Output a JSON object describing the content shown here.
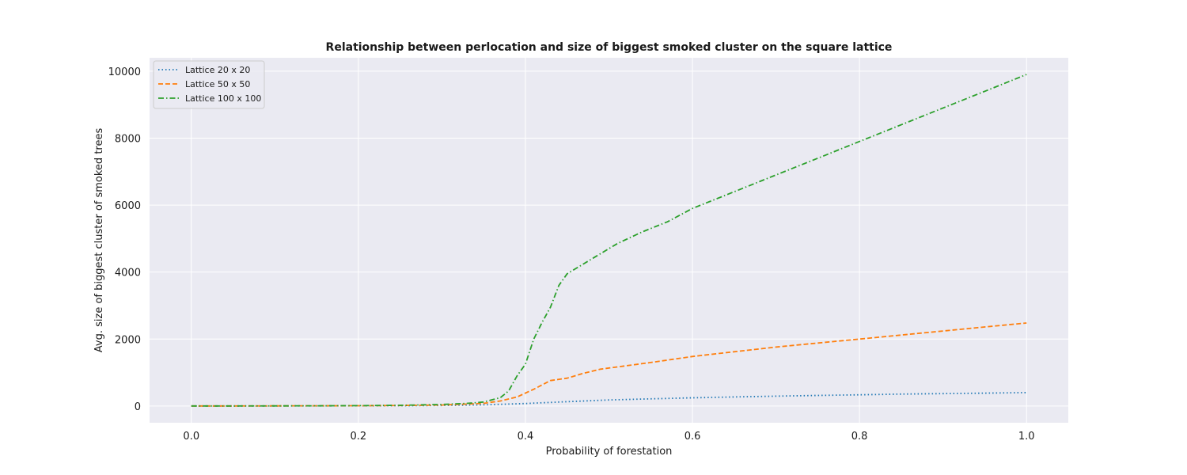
{
  "chart_data": {
    "type": "line",
    "title": "Relationship between perlocation and size of biggest smoked cluster on the square lattice",
    "xlabel": "Probability of forestation",
    "ylabel": "Avg. size of biggest cluster of smoked trees",
    "xlim": [
      -0.05,
      1.05
    ],
    "ylim": [
      -500,
      10400
    ],
    "xticks": [
      0.0,
      0.2,
      0.4,
      0.6,
      0.8,
      1.0
    ],
    "xtick_labels": [
      "0.0",
      "0.2",
      "0.4",
      "0.6",
      "0.8",
      "1.0"
    ],
    "yticks": [
      0,
      2000,
      4000,
      6000,
      8000,
      10000
    ],
    "ytick_labels": [
      "0",
      "2000",
      "4000",
      "6000",
      "8000",
      "10000"
    ],
    "grid": true,
    "legend_position": "top-left",
    "series": [
      {
        "name": "Lattice 20 x 20",
        "color": "#1f77b4",
        "style": "dotted",
        "x": [
          0.0,
          0.05,
          0.1,
          0.15,
          0.2,
          0.25,
          0.3,
          0.35,
          0.4,
          0.45,
          0.5,
          0.55,
          0.6,
          0.65,
          0.7,
          0.75,
          0.8,
          0.85,
          0.9,
          0.95,
          1.0
        ],
        "y": [
          1,
          1,
          2,
          3,
          5,
          8,
          15,
          35,
          75,
          130,
          180,
          215,
          245,
          270,
          295,
          315,
          335,
          355,
          370,
          385,
          400
        ]
      },
      {
        "name": "Lattice 50 x 50",
        "color": "#ff7f0e",
        "style": "dashed",
        "x": [
          0.0,
          0.05,
          0.1,
          0.15,
          0.2,
          0.25,
          0.3,
          0.35,
          0.37,
          0.39,
          0.41,
          0.43,
          0.45,
          0.47,
          0.49,
          0.52,
          0.55,
          0.6,
          0.65,
          0.7,
          0.75,
          0.8,
          0.85,
          0.9,
          0.95,
          1.0
        ],
        "y": [
          1,
          2,
          3,
          5,
          8,
          15,
          30,
          80,
          150,
          270,
          500,
          760,
          830,
          980,
          1100,
          1200,
          1300,
          1480,
          1620,
          1760,
          1880,
          2000,
          2120,
          2240,
          2360,
          2480
        ]
      },
      {
        "name": "Lattice 100 x 100",
        "color": "#2ca02c",
        "style": "dashdot",
        "x": [
          0.0,
          0.05,
          0.1,
          0.15,
          0.2,
          0.25,
          0.3,
          0.33,
          0.35,
          0.37,
          0.38,
          0.39,
          0.4,
          0.41,
          0.42,
          0.43,
          0.44,
          0.45,
          0.47,
          0.49,
          0.51,
          0.54,
          0.57,
          0.6,
          0.65,
          0.7,
          0.75,
          0.8,
          0.85,
          0.9,
          0.95,
          1.0
        ],
        "y": [
          1,
          2,
          3,
          5,
          10,
          20,
          45,
          80,
          120,
          250,
          450,
          900,
          1250,
          2000,
          2500,
          2950,
          3600,
          3950,
          4250,
          4550,
          4850,
          5200,
          5500,
          5900,
          6400,
          6900,
          7400,
          7900,
          8400,
          8900,
          9400,
          9900
        ]
      }
    ]
  }
}
